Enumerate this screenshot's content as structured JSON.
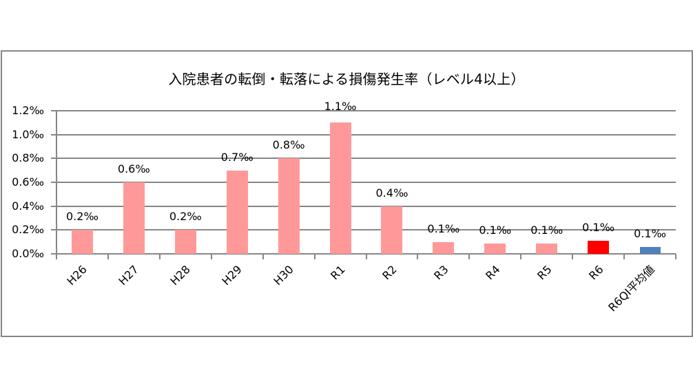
{
  "chart_data": {
    "type": "bar",
    "title": "入院患者の転倒・転落による損傷発生率（レベル4以上）",
    "xlabel": "",
    "ylabel": "",
    "ylim": [
      0,
      1.2
    ],
    "y_unit": "‰",
    "y_ticks": [
      "0.0‰",
      "0.2‰",
      "0.4‰",
      "0.6‰",
      "0.8‰",
      "1.0‰",
      "1.2‰"
    ],
    "grid": true,
    "legend": null,
    "categories": [
      "H26",
      "H27",
      "H28",
      "H29",
      "H30",
      "R1",
      "R2",
      "R3",
      "R4",
      "R5",
      "R6",
      "R6QI平均値"
    ],
    "values": [
      0.2,
      0.6,
      0.2,
      0.7,
      0.8,
      1.1,
      0.4,
      0.1,
      0.087,
      0.087,
      0.11,
      0.06
    ],
    "data_labels": [
      "0.2‰",
      "0.6‰",
      "0.2‰",
      "0.7‰",
      "0.8‰",
      "1.1‰",
      "0.4‰",
      "0.1‰",
      "0.1‰",
      "0.1‰",
      "0.1‰",
      "0.1‰"
    ],
    "bar_colors": [
      "#FF9999",
      "#FF9999",
      "#FF9999",
      "#FF9999",
      "#FF9999",
      "#FF9999",
      "#FF9999",
      "#FF9999",
      "#FF9999",
      "#FF9999",
      "#FF0000",
      "#4F81BD"
    ]
  },
  "colors": {
    "default_bar": "#FF9999",
    "highlight_bar": "#FF0000",
    "benchmark_bar": "#4F81BD",
    "axis": "#868686"
  }
}
